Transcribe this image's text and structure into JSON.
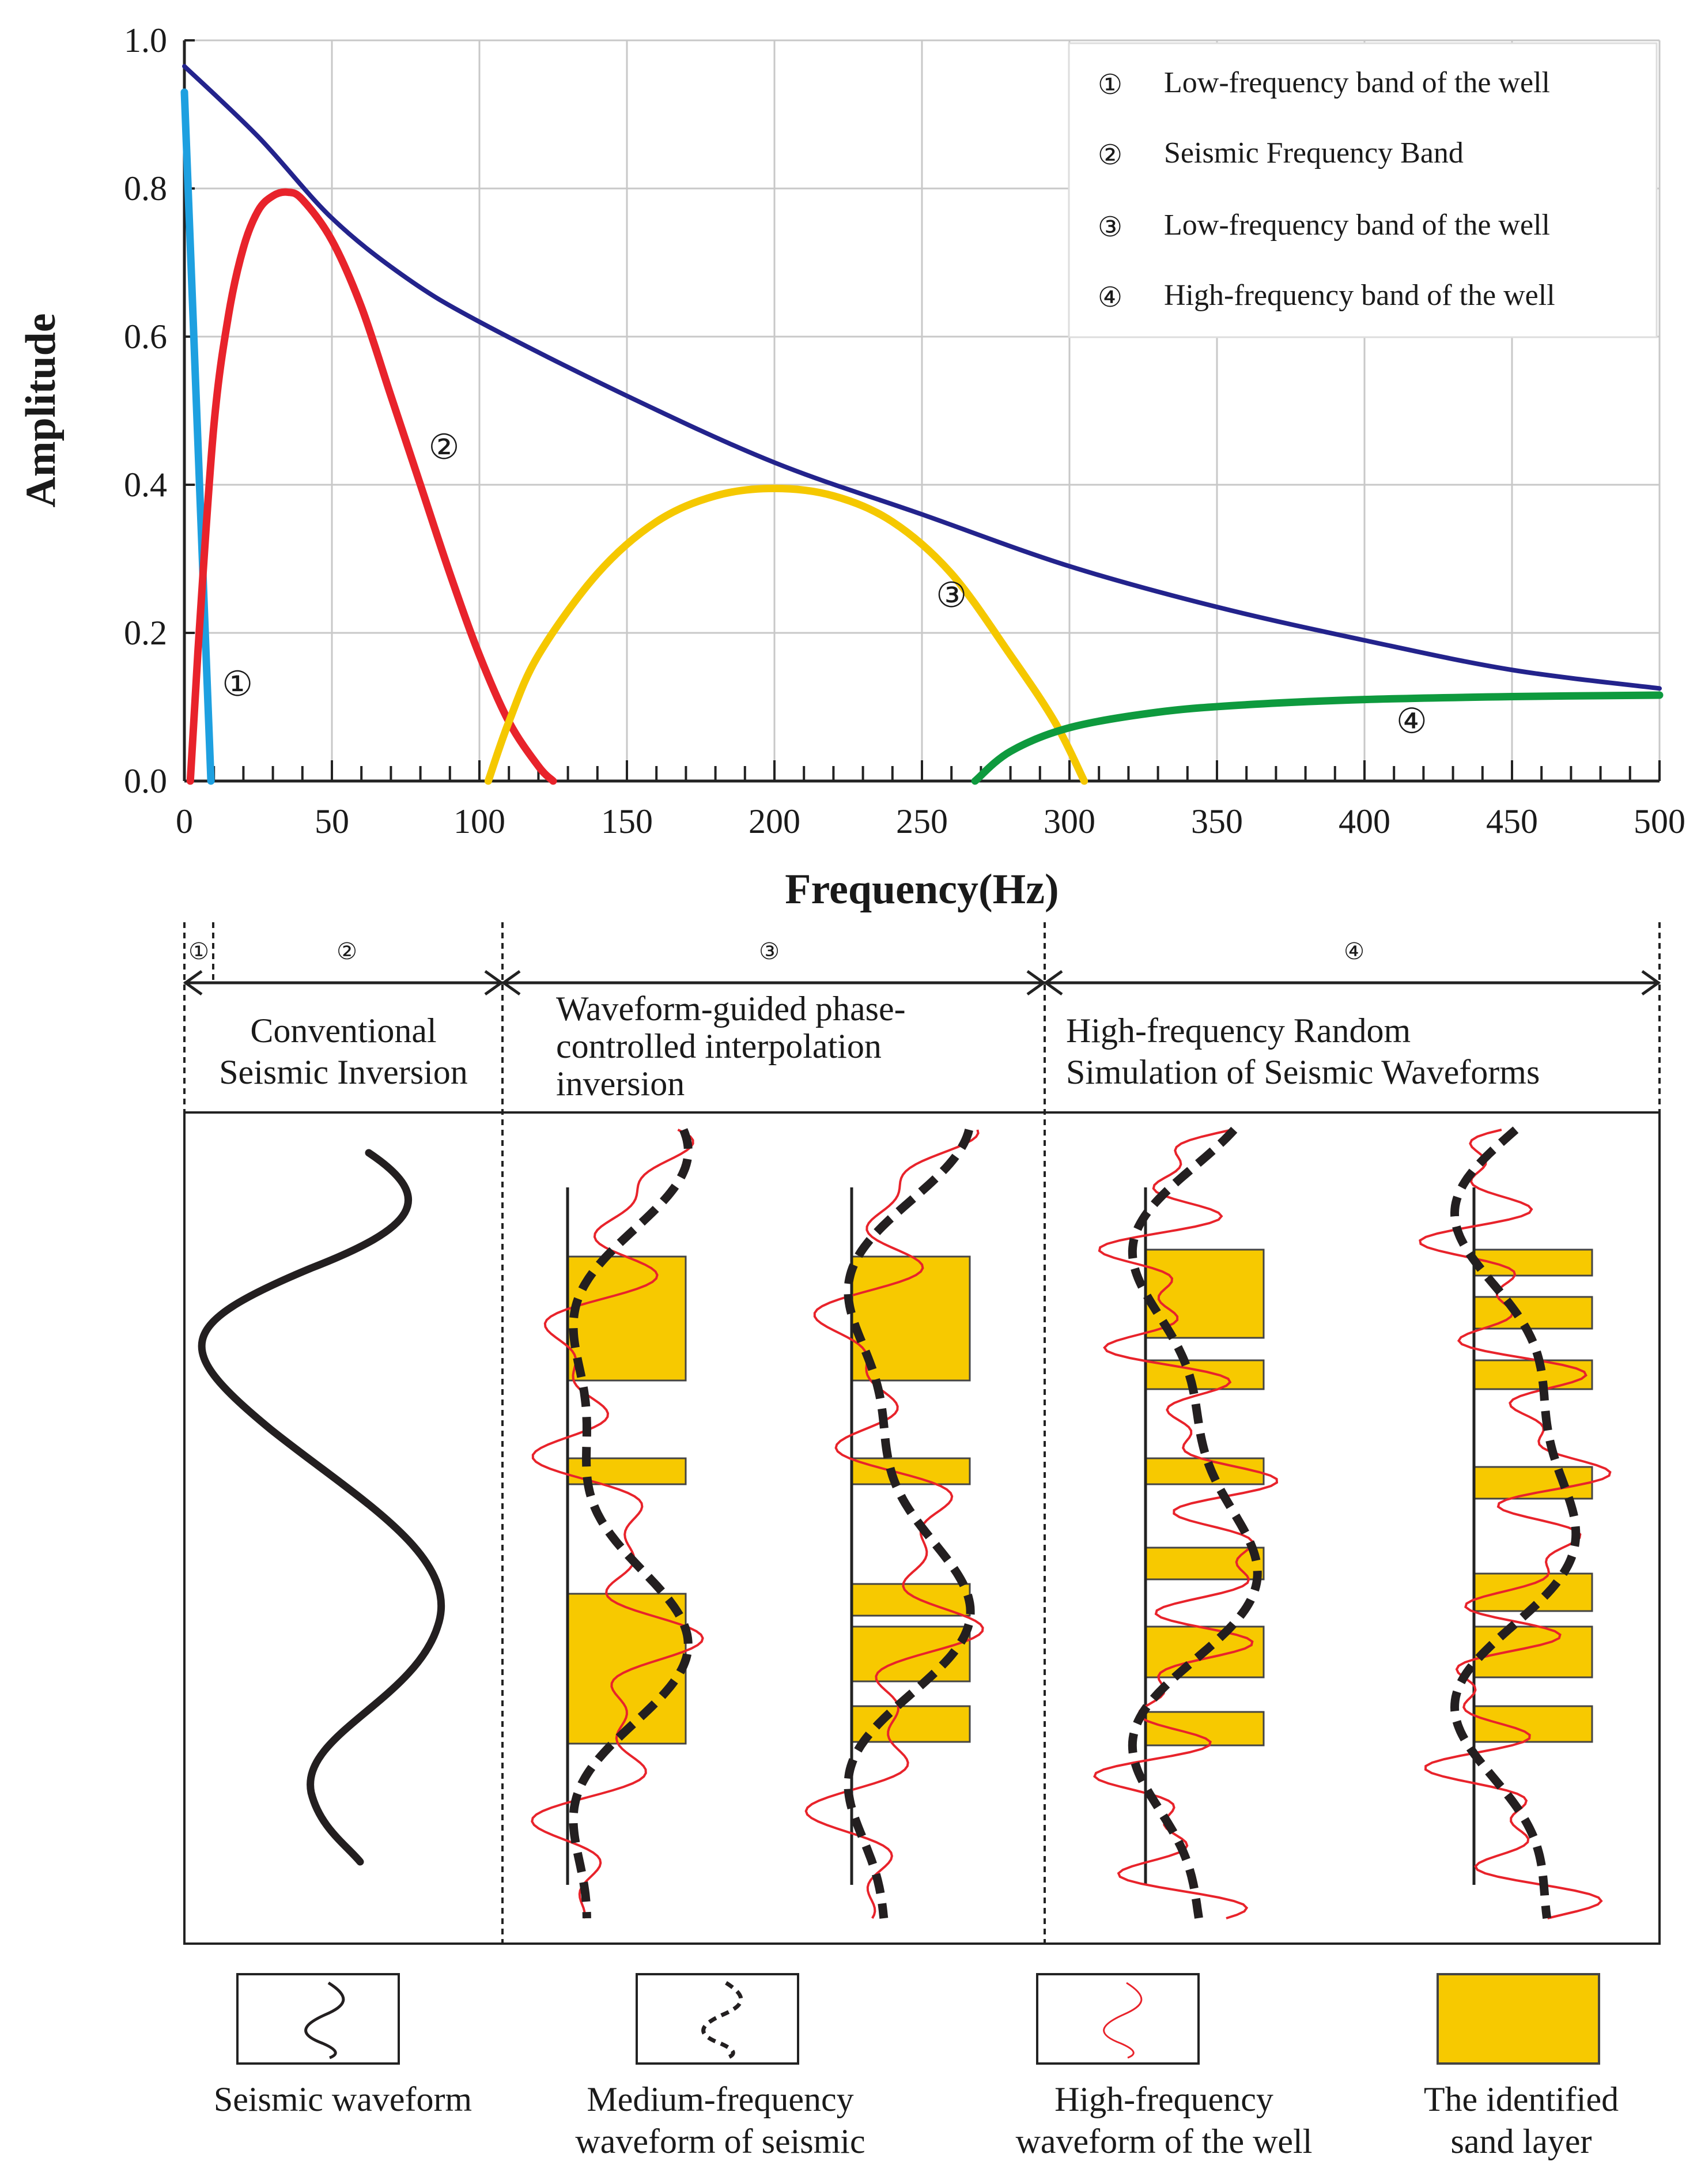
{
  "chart_data": {
    "type": "line",
    "xlabel": "Frequency(Hz)",
    "ylabel": "Amplitude",
    "xlim": [
      0,
      500
    ],
    "ylim": [
      0,
      1.0
    ],
    "x_ticks": [
      0,
      50,
      100,
      150,
      200,
      250,
      300,
      350,
      400,
      450,
      500
    ],
    "y_ticks": [
      "0.0",
      "0.2",
      "0.4",
      "0.6",
      "0.8",
      "1.0"
    ],
    "grid": true,
    "legend_position": "top-right",
    "legend": [
      {
        "num": "①",
        "label": "Low-frequency band of the well"
      },
      {
        "num": "②",
        "label": "Seismic Frequency Band"
      },
      {
        "num": "③",
        "label": "Low-frequency band of the well"
      },
      {
        "num": "④",
        "label": "High-frequency band of the well"
      }
    ],
    "series": [
      {
        "name": "envelope",
        "color": "#23238c",
        "x": [
          0,
          25,
          50,
          75,
          100,
          150,
          200,
          250,
          300,
          350,
          400,
          450,
          500
        ],
        "y": [
          0.965,
          0.87,
          0.76,
          0.68,
          0.62,
          0.52,
          0.43,
          0.36,
          0.29,
          0.235,
          0.19,
          0.15,
          0.125
        ]
      },
      {
        "name": "①",
        "color": "#1ea0e0",
        "x": [
          0,
          9
        ],
        "y": [
          0.93,
          0.0
        ]
      },
      {
        "name": "②",
        "color": "#e8232b",
        "x": [
          2,
          5,
          10,
          15,
          20,
          25,
          30,
          35,
          40,
          50,
          60,
          70,
          80,
          90,
          100,
          110,
          120,
          125
        ],
        "y": [
          0.0,
          0.2,
          0.48,
          0.63,
          0.72,
          0.77,
          0.79,
          0.795,
          0.785,
          0.73,
          0.64,
          0.52,
          0.4,
          0.28,
          0.17,
          0.08,
          0.02,
          0.0
        ]
      },
      {
        "name": "③",
        "color": "#f5c800",
        "x": [
          103,
          110,
          120,
          140,
          160,
          180,
          200,
          220,
          240,
          260,
          280,
          295,
          305
        ],
        "y": [
          0.0,
          0.08,
          0.17,
          0.28,
          0.35,
          0.385,
          0.395,
          0.385,
          0.35,
          0.28,
          0.17,
          0.08,
          0.0
        ]
      },
      {
        "name": "④",
        "color": "#0e9a3e",
        "x": [
          268,
          280,
          300,
          330,
          360,
          400,
          450,
          500
        ],
        "y": [
          0.0,
          0.04,
          0.072,
          0.093,
          0.103,
          0.11,
          0.114,
          0.116
        ]
      }
    ],
    "curve_labels": [
      {
        "text": "①",
        "x": 18,
        "y": 0.115
      },
      {
        "text": "②",
        "x": 88,
        "y": 0.435
      },
      {
        "text": "③",
        "x": 260,
        "y": 0.235
      },
      {
        "text": "④",
        "x": 416,
        "y": 0.065
      }
    ]
  },
  "lower_panel": {
    "zones": [
      "①",
      "②",
      "③",
      "④"
    ],
    "panels": [
      {
        "title": [
          "Conventional",
          "Seismic Inversion"
        ]
      },
      {
        "title": [
          "Waveform-guided phase-",
          "controlled interpolation",
          "inversion"
        ]
      },
      {
        "title": [
          "High-frequency Random",
          "Simulation of Seismic Waveforms"
        ]
      }
    ],
    "legend": [
      {
        "key": "seismic",
        "label": [
          "Seismic waveform"
        ]
      },
      {
        "key": "medium",
        "label": [
          "Medium-frequency",
          "waveform of  seismic"
        ]
      },
      {
        "key": "well",
        "label": [
          "High-frequency",
          "waveform of the well"
        ]
      },
      {
        "key": "sand",
        "label": [
          "The identified",
          "sand layer"
        ]
      }
    ]
  },
  "colors": {
    "sand_fill": "#f7c900",
    "well_line": "#e8232b",
    "seismic_line": "#231f20"
  }
}
